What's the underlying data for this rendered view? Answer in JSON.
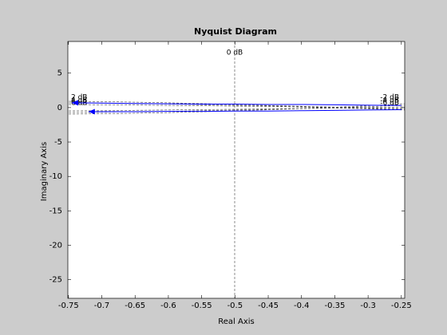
{
  "chart_data": {
    "type": "line",
    "title": "Nyquist Diagram",
    "x_label": "Real Axis",
    "y_label": "Imaginary Axis",
    "xlim": [
      -0.751,
      -0.245
    ],
    "ylim": [
      -27.7,
      9.6
    ],
    "xticks": [
      -0.75,
      -0.7,
      -0.65,
      -0.6,
      -0.55,
      -0.5,
      -0.45,
      -0.4,
      -0.35,
      -0.3,
      -0.25
    ],
    "yticks": [
      5,
      0,
      -5,
      -10,
      -15,
      -20,
      -25
    ],
    "grid": true,
    "annotations": [
      "0 dB",
      "2 dB",
      "4 dB",
      "6 dB",
      "-2 dB",
      "-4 dB",
      "-6 dB"
    ],
    "series": [
      {
        "color": "#0000ff",
        "x": [
          -0.25,
          -0.3,
          -0.35,
          -0.4,
          -0.45,
          -0.5,
          -0.55,
          -0.6,
          -0.65,
          -0.7,
          -0.745
        ],
        "values": [
          0.3,
          0.35,
          0.4,
          0.45,
          0.45,
          0.5,
          0.5,
          0.55,
          0.6,
          0.65,
          0.7
        ]
      },
      {
        "color": "#0000ff",
        "x": [
          -0.25,
          -0.3,
          -0.35,
          -0.4,
          -0.45,
          -0.5,
          -0.55,
          -0.6,
          -0.65,
          -0.7,
          -0.72
        ],
        "values": [
          -0.3,
          -0.35,
          -0.4,
          -0.45,
          -0.5,
          -0.5,
          -0.55,
          -0.55,
          -0.6,
          -0.6,
          -0.6
        ]
      }
    ]
  }
}
